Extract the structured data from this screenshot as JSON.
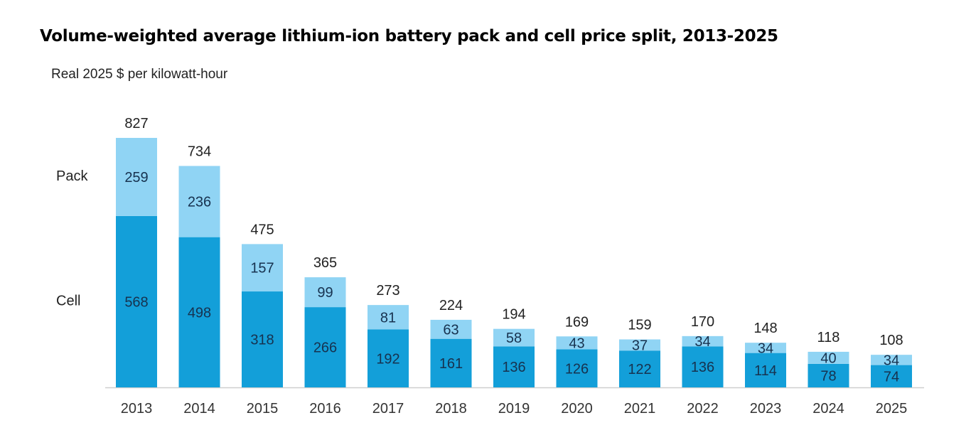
{
  "chart_data": {
    "type": "bar",
    "stacked": true,
    "title": "Volume-weighted average lithium-ion battery pack and cell price split, 2013-2025",
    "ylabel": "Real 2025 $ per kilowatt-hour",
    "categories": [
      "2013",
      "2014",
      "2015",
      "2016",
      "2017",
      "2018",
      "2019",
      "2020",
      "2021",
      "2022",
      "2023",
      "2024",
      "2025"
    ],
    "series": [
      {
        "name": "Cell",
        "color": "#139fd9",
        "values": [
          568,
          498,
          318,
          266,
          192,
          161,
          136,
          126,
          122,
          136,
          114,
          78,
          74
        ]
      },
      {
        "name": "Pack",
        "color": "#90d4f4",
        "values": [
          259,
          236,
          157,
          99,
          81,
          63,
          58,
          43,
          37,
          34,
          34,
          40,
          34
        ]
      }
    ],
    "totals": [
      827,
      734,
      475,
      365,
      273,
      224,
      194,
      169,
      159,
      170,
      148,
      118,
      108
    ],
    "ylim": [
      0,
      827
    ],
    "grid": false,
    "legend": "left, inline labels beside first bar"
  }
}
